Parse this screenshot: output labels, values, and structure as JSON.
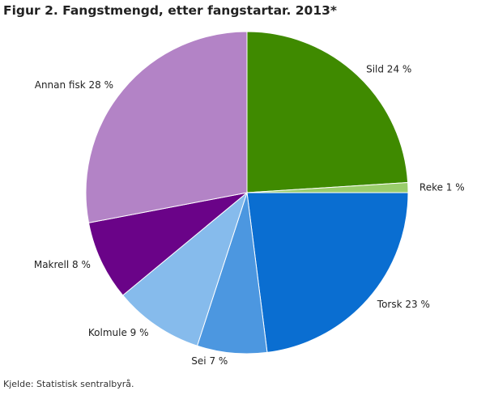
{
  "title": "Figur 2. Fangstmengd, etter fangstartar. 2013*",
  "source": "Kjelde: Statistisk sentralbyrå.",
  "chart_data": {
    "type": "pie",
    "start": "12 o'clock",
    "direction": "clockwise",
    "slices": [
      {
        "name": "Sild",
        "value": 24,
        "label": "Sild 24 %",
        "color": "#3f8a00"
      },
      {
        "name": "Reke",
        "value": 1,
        "label": "Reke 1 %",
        "color": "#9acd6c"
      },
      {
        "name": "Torsk",
        "value": 23,
        "label": "Torsk 23 %",
        "color": "#0a6ed1"
      },
      {
        "name": "Sei",
        "value": 7,
        "label": "Sei 7 %",
        "color": "#4c97e0"
      },
      {
        "name": "Kolmule",
        "value": 9,
        "label": "Kolmule 9 %",
        "color": "#86bbec"
      },
      {
        "name": "Makrell",
        "value": 8,
        "label": "Makrell 8 %",
        "color": "#6a0388"
      },
      {
        "name": "Annan fisk",
        "value": 28,
        "label": "Annan fisk 28 %",
        "color": "#b383c6"
      }
    ]
  }
}
